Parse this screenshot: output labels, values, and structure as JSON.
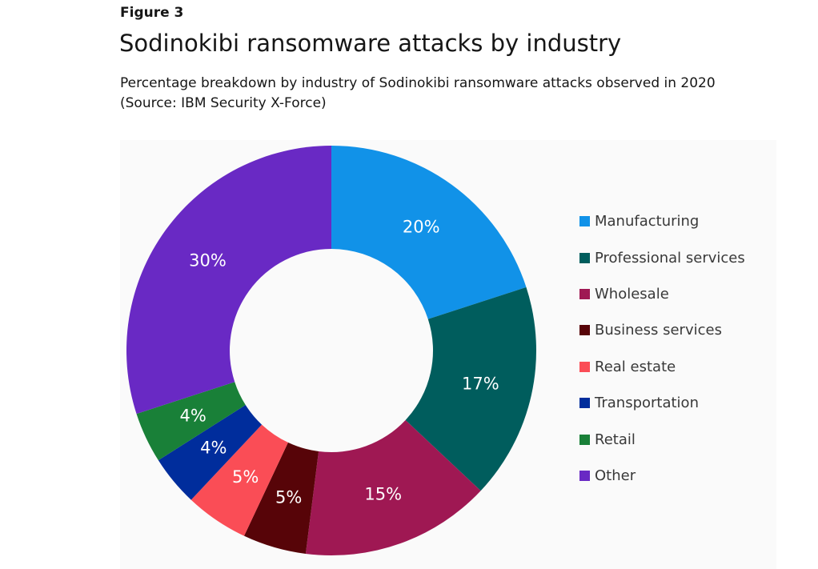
{
  "figure_label": "Figure 3",
  "chart_data": {
    "type": "pie",
    "donut": true,
    "title": "Sodinokibi ransomware attacks by industry",
    "subtitle": "Percentage breakdown by industry of Sodinokibi ransomware attacks observed in 2020",
    "source": "(Source: IBM Security X-Force)",
    "legend_position": "right",
    "start_angle_deg": 0,
    "direction": "clockwise",
    "unit": "%",
    "slices": [
      {
        "label": "Manufacturing",
        "value": 20,
        "display": "20%",
        "color": "#1192e8"
      },
      {
        "label": "Professional services",
        "value": 17,
        "display": "17%",
        "color": "#005d5d"
      },
      {
        "label": "Wholesale",
        "value": 15,
        "display": "15%",
        "color": "#9f1853"
      },
      {
        "label": "Business services",
        "value": 5,
        "display": "5%",
        "color": "#570408"
      },
      {
        "label": "Real estate",
        "value": 5,
        "display": "5%",
        "color": "#fa4d56"
      },
      {
        "label": "Transportation",
        "value": 4,
        "display": "4%",
        "color": "#002d9c"
      },
      {
        "label": "Retail",
        "value": 4,
        "display": "4%",
        "color": "#198038"
      },
      {
        "label": "Other",
        "value": 30,
        "display": "30%",
        "color": "#6929c4"
      }
    ]
  }
}
